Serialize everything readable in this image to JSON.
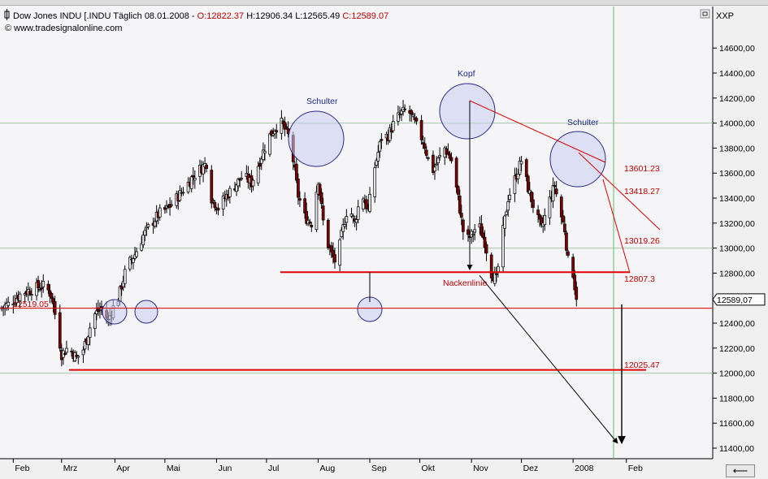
{
  "header": {
    "instrument": "Dow Jones INDU [.INDU",
    "period": "Täglich",
    "date": "08.01.2008",
    "open_label": "O:",
    "open": "12822.37",
    "high_label": "H:",
    "high": "12906.34",
    "low_label": "L:",
    "low": "12565.49",
    "close_label": "C:",
    "close": "12589.07",
    "source": "© www.tradesignalonline.com",
    "symbol_tag": "XXP",
    "last_price": "12589,07"
  },
  "chart_data": {
    "type": "candlestick",
    "title": "Dow Jones INDU [.INDU Täglich",
    "ylim": [
      11300,
      14800
    ],
    "y_ticks": [
      11400,
      11600,
      11800,
      12000,
      12200,
      12400,
      12600,
      12800,
      13000,
      13200,
      13400,
      13600,
      13800,
      14000,
      14200,
      14400,
      14600
    ],
    "y_tick_labels": [
      "11400,00",
      "11600,00",
      "11800,00",
      "12000,00",
      "12200,00",
      "12400,00",
      "12600,00",
      "12800,00",
      "13000,00",
      "13200,00",
      "13400,00",
      "13600,00",
      "13800,00",
      "14000,00",
      "14200,00",
      "14400,00",
      "14600,00"
    ],
    "x_labels": [
      "Feb",
      "Mrz",
      "Apr",
      "Mai",
      "Jun",
      "Jul",
      "Aug",
      "Sep",
      "Okt",
      "Nov",
      "Dez",
      "2008",
      "Feb"
    ],
    "x_label_days": [
      7,
      36,
      68,
      98,
      129,
      159,
      190,
      221,
      251,
      282,
      312,
      343,
      375
    ],
    "grid_levels": [
      12000,
      12519,
      13000,
      14000
    ],
    "close_anchors": [
      [
        0,
        12520
      ],
      [
        5,
        12560
      ],
      [
        12,
        12640
      ],
      [
        20,
        12680
      ],
      [
        26,
        12700
      ],
      [
        30,
        12620
      ],
      [
        33,
        12400
      ],
      [
        36,
        12150
      ],
      [
        40,
        12210
      ],
      [
        45,
        12120
      ],
      [
        49,
        12190
      ],
      [
        52,
        12320
      ],
      [
        55,
        12460
      ],
      [
        60,
        12520
      ],
      [
        64,
        12420
      ],
      [
        66,
        12500
      ],
      [
        70,
        12600
      ],
      [
        75,
        12850
      ],
      [
        80,
        12950
      ],
      [
        85,
        13100
      ],
      [
        90,
        13200
      ],
      [
        95,
        13280
      ],
      [
        100,
        13320
      ],
      [
        105,
        13400
      ],
      [
        110,
        13480
      ],
      [
        114,
        13560
      ],
      [
        118,
        13620
      ],
      [
        123,
        13680
      ],
      [
        126,
        13400
      ],
      [
        130,
        13320
      ],
      [
        135,
        13420
      ],
      [
        140,
        13500
      ],
      [
        145,
        13580
      ],
      [
        150,
        13520
      ],
      [
        155,
        13700
      ],
      [
        160,
        13880
      ],
      [
        164,
        13960
      ],
      [
        168,
        14000
      ],
      [
        172,
        13900
      ],
      [
        175,
        13700
      ],
      [
        178,
        13420
      ],
      [
        182,
        13250
      ],
      [
        186,
        13200
      ],
      [
        190,
        13550
      ],
      [
        194,
        13100
      ],
      [
        198,
        12950
      ],
      [
        201,
        12870
      ],
      [
        204,
        13100
      ],
      [
        208,
        13350
      ],
      [
        212,
        13200
      ],
      [
        216,
        13450
      ],
      [
        220,
        13300
      ],
      [
        224,
        13650
      ],
      [
        228,
        13880
      ],
      [
        232,
        13900
      ],
      [
        236,
        14020
      ],
      [
        240,
        14080
      ],
      [
        244,
        14110
      ],
      [
        246,
        14050
      ],
      [
        250,
        13950
      ],
      [
        254,
        13820
      ],
      [
        258,
        13600
      ],
      [
        262,
        13700
      ],
      [
        266,
        13800
      ],
      [
        270,
        13700
      ],
      [
        274,
        13400
      ],
      [
        278,
        13050
      ],
      [
        282,
        13100
      ],
      [
        286,
        13200
      ],
      [
        290,
        13050
      ],
      [
        294,
        12800
      ],
      [
        297,
        12750
      ],
      [
        300,
        13050
      ],
      [
        304,
        13400
      ],
      [
        308,
        13550
      ],
      [
        312,
        13700
      ],
      [
        316,
        13480
      ],
      [
        320,
        13300
      ],
      [
        324,
        13150
      ],
      [
        328,
        13350
      ],
      [
        332,
        13500
      ],
      [
        335,
        13300
      ],
      [
        338,
        13150
      ],
      [
        340,
        12900
      ],
      [
        343,
        12800
      ],
      [
        345,
        12589
      ]
    ],
    "annotations": {
      "left_shoulder": "Schulter",
      "head": "Kopf",
      "right_shoulder": "Schulter",
      "neckline": "Nackenlinie",
      "levels": [
        {
          "value": 13601.23,
          "label": "13601.23"
        },
        {
          "value": 13418.27,
          "label": "13418.27"
        },
        {
          "value": 13019.26,
          "label": "13019.26"
        },
        {
          "value": 12807.3,
          "label": "12807.3"
        },
        {
          "value": 12519.05,
          "label": "12519.05"
        },
        {
          "value": 12025.47,
          "label": "12025.47"
        }
      ],
      "neckline_value": 12807.3,
      "target_value": 11400
    },
    "colors": {
      "background": "#f5f5f8",
      "up_candle": "#e8e8e8",
      "down_candle": "#800000",
      "outline": "#000000",
      "red_line": "#e00000",
      "circle_fill": "#c8cdf0",
      "circle_stroke": "#2a2a8a",
      "grid": "#a8c8a8",
      "vertical_marker": "#60c060"
    }
  }
}
